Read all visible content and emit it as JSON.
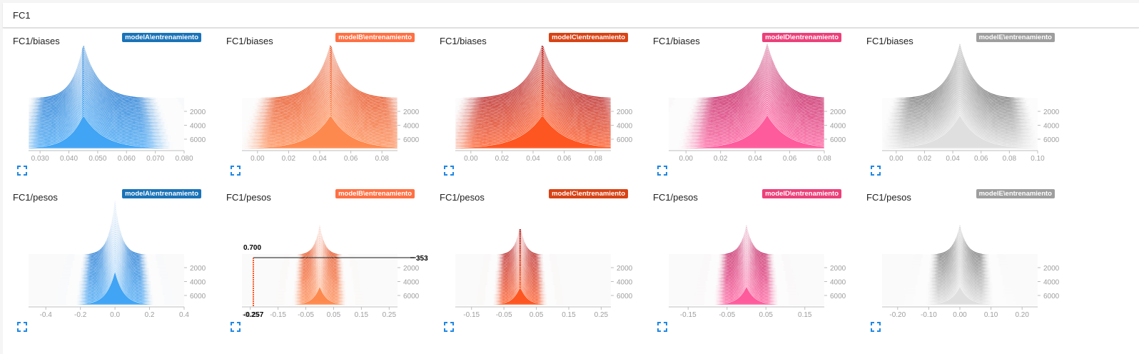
{
  "header": {
    "title": "FC1"
  },
  "colors": {
    "modelA": {
      "base": "#1976d2",
      "light": "#42a5f5",
      "tag": "#1a73b8"
    },
    "modelB": {
      "base": "#e64a19",
      "light": "#ff8a50",
      "tag": "#ff7043"
    },
    "modelC": {
      "base": "#b71c1c",
      "light": "#ff5722",
      "tag": "#d84315"
    },
    "modelD": {
      "base": "#c2185b",
      "light": "#ff5c9d",
      "tag": "#ec407a"
    },
    "modelE": {
      "base": "#757575",
      "light": "#e0e0e0",
      "tag": "#9e9e9e"
    }
  },
  "rows": [
    {
      "title": "FC1/biases",
      "charts": [
        {
          "run": "modelA\\entrenamiento",
          "color_key": "modelA",
          "xticks": [
            "0.030",
            "0.040",
            "0.050",
            "0.060",
            "0.070",
            "0.080"
          ],
          "xmin": 0.026,
          "xmax": 0.08,
          "center": 0.045,
          "spread": 0.007,
          "right_skew": 1.4,
          "peak_height": 1.0,
          "yticks": [
            "2000",
            "4000",
            "6000"
          ]
        },
        {
          "run": "modelB\\entrenamiento",
          "color_key": "modelB",
          "xticks": [
            "0.00",
            "0.02",
            "0.04",
            "0.06",
            "0.08"
          ],
          "xmin": -0.01,
          "xmax": 0.09,
          "center": 0.047,
          "spread": 0.018,
          "right_skew": 1.0,
          "peak_height": 1.0,
          "yticks": [
            "2000",
            "4000",
            "6000"
          ]
        },
        {
          "run": "modelC\\entrenamiento",
          "color_key": "modelC",
          "xticks": [
            "0.00",
            "0.02",
            "0.04",
            "0.06",
            "0.08"
          ],
          "xmin": -0.01,
          "xmax": 0.09,
          "center": 0.046,
          "spread": 0.02,
          "right_skew": 1.0,
          "peak_height": 1.0,
          "yticks": [
            "2000",
            "4000",
            "6000"
          ]
        },
        {
          "run": "modelD\\entrenamiento",
          "color_key": "modelD",
          "xticks": [
            "0.00",
            "0.02",
            "0.04",
            "0.06",
            "0.08"
          ],
          "xmin": -0.01,
          "xmax": 0.08,
          "center": 0.047,
          "spread": 0.016,
          "right_skew": 1.0,
          "peak_height": 1.0,
          "yticks": [
            "2000",
            "4000",
            "6000"
          ]
        },
        {
          "run": "modelE\\entrenamiento",
          "color_key": "modelE",
          "xticks": [
            "0.00",
            "0.02",
            "0.04",
            "0.06",
            "0.08",
            "0.10"
          ],
          "xmin": -0.01,
          "xmax": 0.1,
          "center": 0.045,
          "spread": 0.018,
          "right_skew": 1.0,
          "peak_height": 1.0,
          "yticks": [
            "2000",
            "4000",
            "6000"
          ]
        }
      ]
    },
    {
      "title": "FC1/pesos",
      "charts": [
        {
          "run": "modelA\\entrenamiento",
          "color_key": "modelA",
          "xticks": [
            "-0.4",
            "-0.2",
            "0.0",
            "0.2",
            "0.4"
          ],
          "xmin": -0.5,
          "xmax": 0.4,
          "center": 0.0,
          "spread": 0.07,
          "right_skew": 1.0,
          "peak_height": 1.0,
          "yticks": [
            "2000",
            "4000",
            "6000"
          ]
        },
        {
          "run": "modelB\\entrenamiento",
          "color_key": "modelB",
          "xticks": [
            "-0.25",
            "-0.15",
            "-0.05",
            "0.05",
            "0.15",
            "0.25"
          ],
          "xmin": -0.28,
          "xmax": 0.28,
          "center": 0.0,
          "spread": 0.035,
          "right_skew": 1.0,
          "peak_height": 0.55,
          "yticks": [
            "2000",
            "4000",
            "6000"
          ],
          "hover": {
            "x_value": "-0.257",
            "y_value": "0.700",
            "step": "353"
          }
        },
        {
          "run": "modelC\\entrenamiento",
          "color_key": "modelC",
          "xticks": [
            "-0.15",
            "-0.05",
            "0.05",
            "0.15",
            "0.25"
          ],
          "xmin": -0.2,
          "xmax": 0.28,
          "center": 0.0,
          "spread": 0.03,
          "right_skew": 1.0,
          "peak_height": 0.55,
          "yticks": [
            "2000",
            "4000",
            "6000"
          ]
        },
        {
          "run": "modelD\\entrenamiento",
          "color_key": "modelD",
          "xticks": [
            "-0.15",
            "-0.05",
            "0.05",
            "0.15"
          ],
          "xmin": -0.2,
          "xmax": 0.2,
          "center": 0.0,
          "spread": 0.03,
          "right_skew": 1.0,
          "peak_height": 0.55,
          "yticks": [
            "2000",
            "4000",
            "6000"
          ]
        },
        {
          "run": "modelE\\entrenamiento",
          "color_key": "modelE",
          "xticks": [
            "-0.20",
            "-0.10",
            "0.00",
            "0.10",
            "0.20"
          ],
          "xmin": -0.25,
          "xmax": 0.25,
          "center": 0.0,
          "spread": 0.04,
          "right_skew": 1.0,
          "peak_height": 0.55,
          "yticks": [
            "2000",
            "4000",
            "6000"
          ]
        }
      ]
    }
  ],
  "icons": {
    "expand": "fullscreen-expand-icon"
  }
}
